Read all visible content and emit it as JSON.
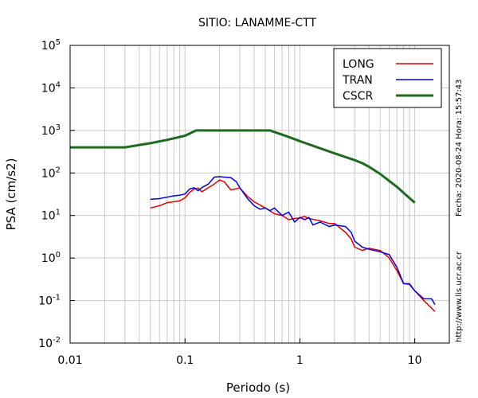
{
  "chart_data": {
    "type": "line",
    "title": "SITIO: LANAMME-CTT",
    "xlabel": "Periodo (s)",
    "ylabel": "PSA (cm/s2)",
    "xscale": "log",
    "yscale": "log",
    "xlim": [
      0.01,
      20
    ],
    "ylim": [
      0.01,
      100000
    ],
    "x_ticks": [
      "0.01",
      "0.1",
      "1",
      "10"
    ],
    "y_ticks": [
      {
        "base": "10",
        "exp": "-2",
        "value": 0.01
      },
      {
        "base": "10",
        "exp": "-1",
        "value": 0.1
      },
      {
        "base": "10",
        "exp": "0",
        "value": 1
      },
      {
        "base": "10",
        "exp": "1",
        "value": 10
      },
      {
        "base": "10",
        "exp": "2",
        "value": 100
      },
      {
        "base": "10",
        "exp": "3",
        "value": 1000
      },
      {
        "base": "10",
        "exp": "4",
        "value": 10000
      },
      {
        "base": "10",
        "exp": "5",
        "value": 100000
      }
    ],
    "grid": true,
    "legend_position": "top-right",
    "side_text_top": "Fecha: 2020-08-24 Hora: 15:57:43",
    "side_text_bottom": "http://www.lis.ucr.ac.cr",
    "series": [
      {
        "name": "LONG",
        "color": "#dd0000",
        "points": [
          [
            0.05,
            15
          ],
          [
            0.06,
            17
          ],
          [
            0.07,
            20
          ],
          [
            0.08,
            21
          ],
          [
            0.09,
            22
          ],
          [
            0.1,
            26
          ],
          [
            0.11,
            35
          ],
          [
            0.12,
            42
          ],
          [
            0.13,
            44
          ],
          [
            0.14,
            36
          ],
          [
            0.16,
            45
          ],
          [
            0.18,
            55
          ],
          [
            0.2,
            68
          ],
          [
            0.22,
            62
          ],
          [
            0.25,
            40
          ],
          [
            0.3,
            44
          ],
          [
            0.35,
            28
          ],
          [
            0.4,
            21
          ],
          [
            0.5,
            15
          ],
          [
            0.6,
            11
          ],
          [
            0.7,
            10
          ],
          [
            0.8,
            8
          ],
          [
            0.9,
            8.5
          ],
          [
            1.0,
            8.8
          ],
          [
            1.1,
            9.5
          ],
          [
            1.2,
            8.5
          ],
          [
            1.5,
            7.5
          ],
          [
            1.8,
            6.5
          ],
          [
            2.0,
            6.5
          ],
          [
            2.5,
            4
          ],
          [
            2.8,
            2.8
          ],
          [
            3.0,
            1.8
          ],
          [
            3.5,
            1.5
          ],
          [
            4.0,
            1.7
          ],
          [
            5.0,
            1.5
          ],
          [
            6.0,
            1.0
          ],
          [
            7.0,
            0.5
          ],
          [
            8.0,
            0.25
          ],
          [
            9.0,
            0.25
          ],
          [
            10,
            0.17
          ],
          [
            12,
            0.1
          ],
          [
            15,
            0.055
          ]
        ]
      },
      {
        "name": "TRAN",
        "color": "#0000dd",
        "points": [
          [
            0.05,
            24
          ],
          [
            0.06,
            25
          ],
          [
            0.07,
            27
          ],
          [
            0.08,
            29
          ],
          [
            0.09,
            30
          ],
          [
            0.1,
            32
          ],
          [
            0.11,
            42
          ],
          [
            0.12,
            45
          ],
          [
            0.13,
            38
          ],
          [
            0.14,
            45
          ],
          [
            0.16,
            55
          ],
          [
            0.18,
            80
          ],
          [
            0.2,
            82
          ],
          [
            0.22,
            80
          ],
          [
            0.25,
            78
          ],
          [
            0.28,
            62
          ],
          [
            0.3,
            45
          ],
          [
            0.35,
            25
          ],
          [
            0.4,
            17
          ],
          [
            0.45,
            14
          ],
          [
            0.5,
            15
          ],
          [
            0.55,
            13
          ],
          [
            0.6,
            15
          ],
          [
            0.7,
            10
          ],
          [
            0.8,
            12
          ],
          [
            0.9,
            7
          ],
          [
            1.0,
            9
          ],
          [
            1.1,
            8
          ],
          [
            1.2,
            9
          ],
          [
            1.3,
            6
          ],
          [
            1.5,
            7
          ],
          [
            1.8,
            5.5
          ],
          [
            2.0,
            6
          ],
          [
            2.5,
            5.5
          ],
          [
            2.8,
            4
          ],
          [
            3.0,
            2.5
          ],
          [
            3.5,
            1.8
          ],
          [
            4.0,
            1.6
          ],
          [
            5.0,
            1.4
          ],
          [
            6.0,
            1.2
          ],
          [
            7.0,
            0.6
          ],
          [
            8.0,
            0.25
          ],
          [
            9.0,
            0.24
          ],
          [
            10,
            0.17
          ],
          [
            12,
            0.11
          ],
          [
            14,
            0.11
          ],
          [
            15,
            0.08
          ]
        ]
      },
      {
        "name": "CSCR",
        "color": "#1f6a1f",
        "points": [
          [
            0.01,
            400
          ],
          [
            0.03,
            400
          ],
          [
            0.05,
            500
          ],
          [
            0.07,
            600
          ],
          [
            0.1,
            750
          ],
          [
            0.125,
            1000
          ],
          [
            0.55,
            1000
          ],
          [
            0.8,
            700
          ],
          [
            1.0,
            560
          ],
          [
            1.5,
            380
          ],
          [
            2.0,
            290
          ],
          [
            3.0,
            200
          ],
          [
            3.5,
            170
          ],
          [
            4.0,
            140
          ],
          [
            5.0,
            95
          ],
          [
            6.0,
            65
          ],
          [
            7.0,
            47
          ],
          [
            8.0,
            34
          ],
          [
            10.0,
            20
          ]
        ]
      }
    ]
  }
}
